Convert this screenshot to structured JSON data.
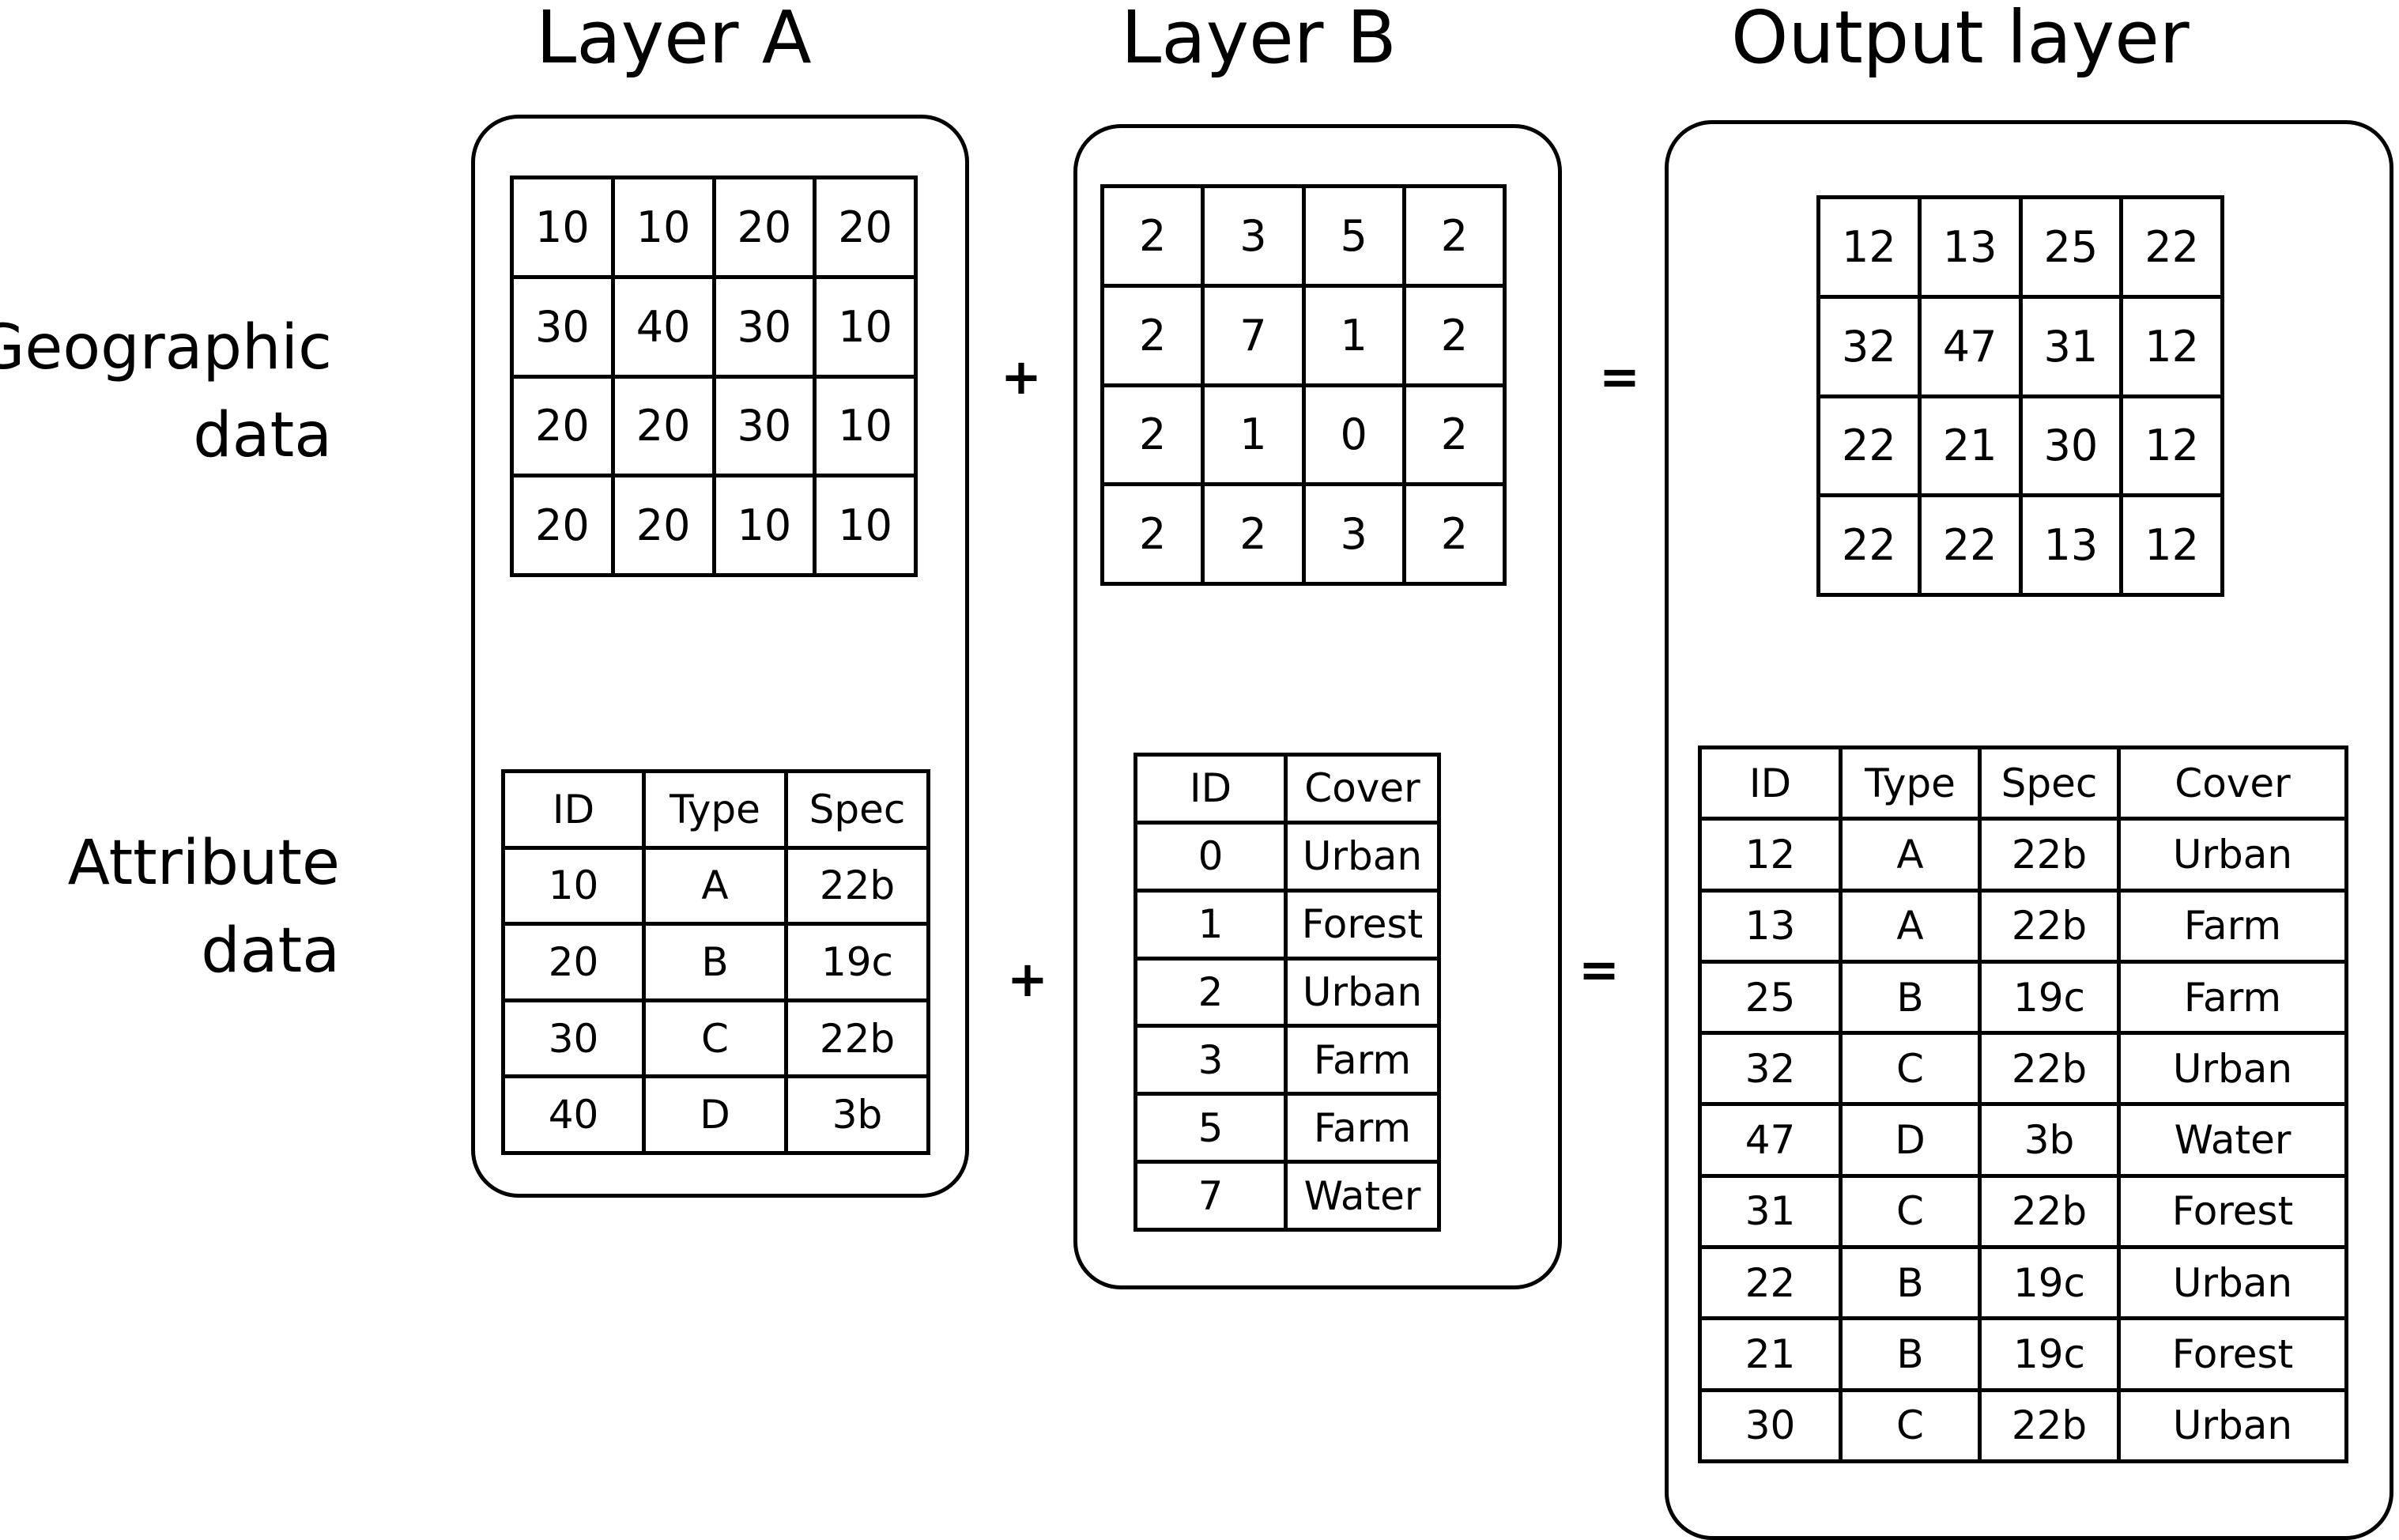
{
  "titles": {
    "layer_a": "Layer A",
    "layer_b": "Layer B",
    "output": "Output layer"
  },
  "row_labels": {
    "geographic_line1": "Geographic",
    "geographic_line2": "data",
    "attribute_line1": "Attribute",
    "attribute_line2": "data"
  },
  "operators": {
    "plus": "+",
    "equals": "="
  },
  "layer_a": {
    "grid": [
      [
        "10",
        "10",
        "20",
        "20"
      ],
      [
        "30",
        "40",
        "30",
        "10"
      ],
      [
        "20",
        "20",
        "30",
        "10"
      ],
      [
        "20",
        "20",
        "10",
        "10"
      ]
    ],
    "attributes": {
      "headers": [
        "ID",
        "Type",
        "Spec"
      ],
      "rows": [
        [
          "10",
          "A",
          "22b"
        ],
        [
          "20",
          "B",
          "19c"
        ],
        [
          "30",
          "C",
          "22b"
        ],
        [
          "40",
          "D",
          "3b"
        ]
      ]
    }
  },
  "layer_b": {
    "grid": [
      [
        "2",
        "3",
        "5",
        "2"
      ],
      [
        "2",
        "7",
        "1",
        "2"
      ],
      [
        "2",
        "1",
        "0",
        "2"
      ],
      [
        "2",
        "2",
        "3",
        "2"
      ]
    ],
    "attributes": {
      "headers": [
        "ID",
        "Cover"
      ],
      "rows": [
        [
          "0",
          "Urban"
        ],
        [
          "1",
          "Forest"
        ],
        [
          "2",
          "Urban"
        ],
        [
          "3",
          "Farm"
        ],
        [
          "5",
          "Farm"
        ],
        [
          "7",
          "Water"
        ]
      ]
    }
  },
  "output": {
    "grid": [
      [
        "12",
        "13",
        "25",
        "22"
      ],
      [
        "32",
        "47",
        "31",
        "12"
      ],
      [
        "22",
        "21",
        "30",
        "12"
      ],
      [
        "22",
        "22",
        "13",
        "12"
      ]
    ],
    "attributes": {
      "headers": [
        "ID",
        "Type",
        "Spec",
        "Cover"
      ],
      "rows": [
        [
          "12",
          "A",
          "22b",
          "Urban"
        ],
        [
          "13",
          "A",
          "22b",
          "Farm"
        ],
        [
          "25",
          "B",
          "19c",
          "Farm"
        ],
        [
          "32",
          "C",
          "22b",
          "Urban"
        ],
        [
          "47",
          "D",
          "3b",
          "Water"
        ],
        [
          "31",
          "C",
          "22b",
          "Forest"
        ],
        [
          "22",
          "B",
          "19c",
          "Urban"
        ],
        [
          "21",
          "B",
          "19c",
          "Forest"
        ],
        [
          "30",
          "C",
          "22b",
          "Urban"
        ]
      ]
    }
  }
}
